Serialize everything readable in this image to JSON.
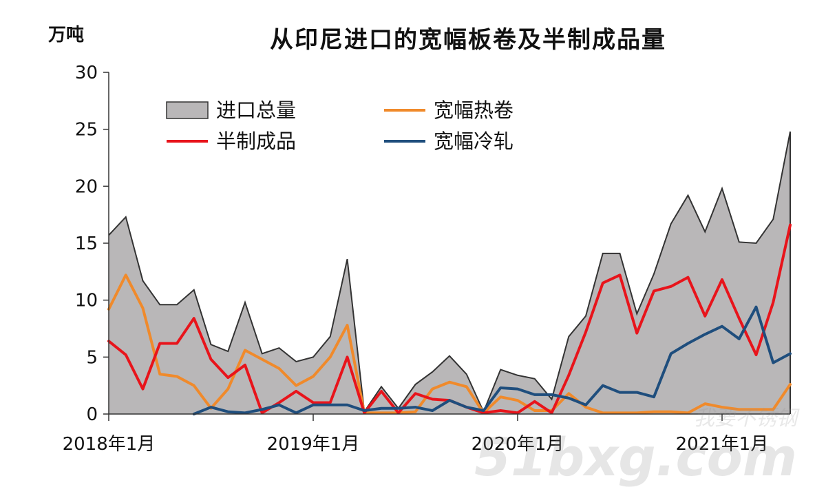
{
  "page": {
    "unit_label": "万吨",
    "watermark_cn": "我要不锈钢",
    "watermark_site": "51bxg.com"
  },
  "chart_data": {
    "type": "line",
    "title": "从印尼进口的宽幅板卷及半制成品量",
    "ylabel": "万吨",
    "xlabel": "",
    "ylim": [
      0,
      30
    ],
    "yticks": [
      0,
      5,
      10,
      15,
      20,
      25,
      30
    ],
    "x_tick_labels": [
      {
        "index": 0,
        "label": "2018年1月"
      },
      {
        "index": 12,
        "label": "2019年1月"
      },
      {
        "index": 24,
        "label": "2020年1月"
      },
      {
        "index": 36,
        "label": "2021年1月"
      }
    ],
    "grid": false,
    "legend_position": "top-left",
    "x": [
      "2018-01",
      "2018-02",
      "2018-03",
      "2018-04",
      "2018-05",
      "2018-06",
      "2018-07",
      "2018-08",
      "2018-09",
      "2018-10",
      "2018-11",
      "2018-12",
      "2019-01",
      "2019-02",
      "2019-03",
      "2019-04",
      "2019-05",
      "2019-06",
      "2019-07",
      "2019-08",
      "2019-09",
      "2019-10",
      "2019-11",
      "2019-12",
      "2020-01",
      "2020-02",
      "2020-03",
      "2020-04",
      "2020-05",
      "2020-06",
      "2020-07",
      "2020-08",
      "2020-09",
      "2020-10",
      "2020-11",
      "2020-12",
      "2021-01",
      "2021-02",
      "2021-03",
      "2021-04",
      "2021-05"
    ],
    "series": [
      {
        "name": "进口总量",
        "kind": "area",
        "color": "#b9b7b8",
        "edge": "#333333",
        "values": [
          15.7,
          17.3,
          11.7,
          9.6,
          9.6,
          10.9,
          6.1,
          5.5,
          9.8,
          5.3,
          5.8,
          4.6,
          5.0,
          6.8,
          13.6,
          0.2,
          2.4,
          0.5,
          2.6,
          3.7,
          5.1,
          3.5,
          0.2,
          3.9,
          3.4,
          3.1,
          1.3,
          6.8,
          8.6,
          14.1,
          14.1,
          8.8,
          12.3,
          16.7,
          19.2,
          16.0,
          19.8,
          15.1,
          15.0,
          17.1,
          24.8
        ]
      },
      {
        "name": "宽幅热卷",
        "kind": "line",
        "color": "#f08a2b",
        "values": [
          9.2,
          12.2,
          9.3,
          3.5,
          3.3,
          2.5,
          0.5,
          2.2,
          5.6,
          4.8,
          4.0,
          2.5,
          3.3,
          5.0,
          7.8,
          0.1,
          0.1,
          0.1,
          0.2,
          2.2,
          2.8,
          2.4,
          0.1,
          1.5,
          1.2,
          0.3,
          0.3,
          1.8,
          0.6,
          0.1,
          0.1,
          0.1,
          0.2,
          0.2,
          0.1,
          0.9,
          0.6,
          0.4,
          0.4,
          0.4,
          2.6
        ]
      },
      {
        "name": "半制成品",
        "kind": "line",
        "color": "#e8141b",
        "values": [
          6.4,
          5.2,
          2.2,
          6.2,
          6.2,
          8.4,
          4.8,
          3.2,
          4.3,
          0.1,
          1.0,
          2.0,
          1.0,
          1.0,
          5.0,
          0.1,
          2.0,
          0.1,
          1.8,
          1.3,
          1.2,
          0.6,
          0.1,
          0.3,
          0.1,
          1.1,
          0.1,
          3.4,
          7.2,
          11.5,
          12.2,
          7.1,
          10.8,
          11.2,
          12.0,
          8.6,
          11.8,
          8.4,
          5.2,
          9.8,
          16.6
        ]
      },
      {
        "name": "宽幅冷轧",
        "kind": "line",
        "color": "#1f4e7d",
        "values": [
          null,
          null,
          null,
          null,
          null,
          0.0,
          0.6,
          0.2,
          0.1,
          0.4,
          0.8,
          0.1,
          0.8,
          0.8,
          0.8,
          0.3,
          0.5,
          0.5,
          0.6,
          0.3,
          1.2,
          0.6,
          0.3,
          2.3,
          2.2,
          1.7,
          1.7,
          1.4,
          0.8,
          2.5,
          1.9,
          1.9,
          1.5,
          5.3,
          6.2,
          7.0,
          7.7,
          6.6,
          9.4,
          4.5,
          5.3
        ]
      }
    ]
  }
}
